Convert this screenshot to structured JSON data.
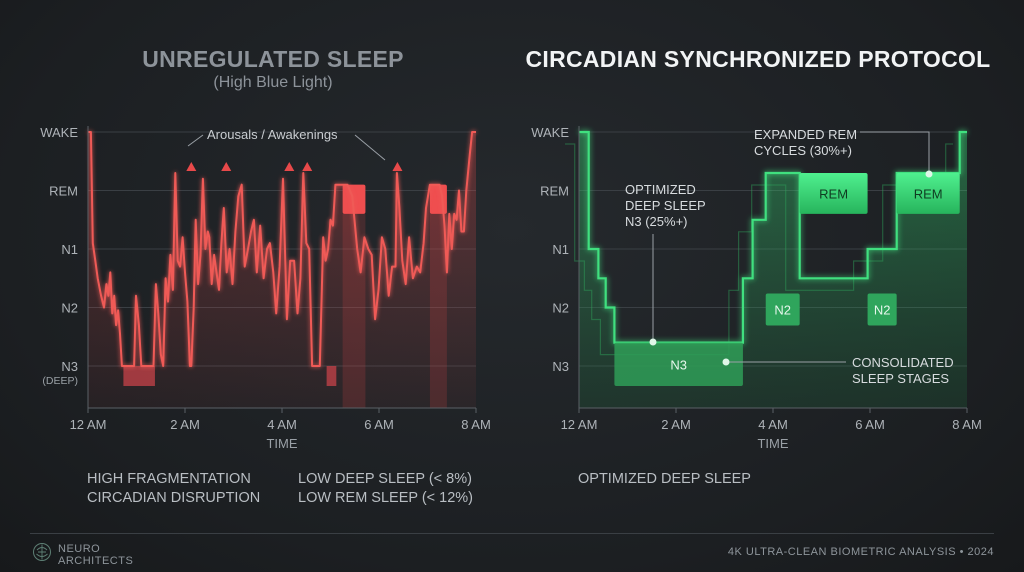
{
  "left_panel": {
    "title": "UNREGULATED SLEEP",
    "subtitle": "(High Blue Light)",
    "annotation": "Arousals / Awakenings",
    "stats": [
      "HIGH FRAGMENTATION",
      "CIRCADIAN DISRUPTION",
      "LOW DEEP SLEEP (< 8%)",
      "LOW REM SLEEP (< 12%)"
    ]
  },
  "right_panel": {
    "title": "CIRCADIAN SYNCHRONIZED PROTOCOL",
    "annotations": {
      "rem_line1": "EXPANDED REM",
      "rem_line2": "CYCLES (30%+)",
      "deep_line1": "OPTIMIZED",
      "deep_line2": "DEEP SLEEP",
      "deep_line3": "N3 (25%+)",
      "consol_line1": "CONSOLIDATED",
      "consol_line2": "SLEEP STAGES"
    },
    "stats": [
      "OPTIMIZED DEEP SLEEP"
    ]
  },
  "footer": {
    "brand_line1": "NEURO",
    "brand_line2": "ARCHITECTS",
    "right_text": "4K ULTRA-CLEAN BIOMETRIC ANALYSIS • 2024"
  },
  "colors": {
    "unregulated": "#e8494a",
    "synchronized": "#39e07a",
    "arousal_marker": "#e8494a"
  },
  "chart_data": [
    {
      "type": "line",
      "title": "UNREGULATED SLEEP",
      "subtitle": "(High Blue Light)",
      "xlabel": "TIME",
      "ylabel": "",
      "x_ticks": [
        "12 AM",
        "2 AM",
        "4 AM",
        "6 AM",
        "8 AM"
      ],
      "y_ticks": [
        "WAKE",
        "REM",
        "N1",
        "N2",
        "N3"
      ],
      "y_tick_sub": "(DEEP)",
      "xlim": [
        0,
        8
      ],
      "y_levels": {
        "WAKE": 4,
        "REM": 3,
        "N1": 2,
        "N2": 1,
        "N3": 0
      },
      "grid": true,
      "series": [
        {
          "x": [
            0,
            0.06,
            0.1,
            0.15,
            0.2,
            0.27,
            0.33,
            0.38,
            0.42,
            0.46,
            0.5,
            0.54,
            0.58,
            0.62,
            0.66,
            0.7,
            0.74,
            0.78,
            0.8,
            0.83,
            0.86,
            0.89,
            0.92,
            0.95,
            0.99,
            1.05,
            1.1,
            1.15,
            1.25,
            1.3,
            1.35,
            1.4,
            1.45,
            1.5,
            1.55,
            1.6,
            1.65,
            1.7,
            1.75,
            1.8,
            1.85,
            1.9,
            1.95,
            2.0,
            2.05,
            2.1,
            2.13,
            2.18,
            2.22,
            2.27,
            2.32,
            2.37,
            2.42,
            2.47,
            2.5,
            2.55,
            2.6,
            2.65,
            2.7,
            2.75,
            2.8,
            2.86,
            2.92,
            2.98,
            3.04,
            3.1,
            3.17,
            3.23,
            3.3,
            3.36,
            3.42,
            3.48,
            3.55,
            3.62,
            3.69,
            3.75,
            3.82,
            3.88,
            3.95,
            4.02,
            4.1,
            4.17,
            4.25,
            4.32,
            4.38,
            4.44,
            4.5,
            4.56,
            4.62,
            4.7,
            4.78,
            4.85,
            4.9,
            4.95,
            5.0,
            5.05,
            5.1,
            5.13,
            5.2,
            5.3,
            5.35,
            5.45,
            5.55,
            5.62,
            5.7,
            5.78,
            5.85,
            5.92,
            5.99,
            6.06,
            6.13,
            6.2,
            6.27,
            6.34,
            6.37,
            6.42,
            6.48,
            6.55,
            6.62,
            6.7,
            6.78,
            6.85,
            6.92,
            6.97,
            7.05,
            7.15,
            7.25,
            7.3,
            7.35,
            7.4,
            7.45,
            7.5,
            7.55,
            7.6,
            7.65,
            7.7,
            7.75,
            7.8,
            7.87,
            7.92,
            7.96,
            8.0
          ],
          "y": [
            4,
            4,
            2.1,
            1.8,
            1.5,
            1.2,
            1.0,
            1.4,
            1.2,
            1.6,
            0.9,
            1.2,
            0.7,
            0.95,
            0.55,
            0,
            0,
            0,
            0,
            0,
            0,
            0,
            0,
            0,
            1.2,
            0.7,
            0,
            0,
            0,
            0,
            0,
            1.4,
            0.9,
            0.2,
            0,
            1.5,
            1.1,
            1.9,
            1.3,
            3.3,
            1.8,
            1.7,
            2.2,
            1.6,
            1.1,
            0,
            0,
            1.0,
            2.5,
            1.4,
            1.9,
            3.2,
            2.0,
            2.3,
            2.2,
            1.4,
            1.9,
            1.6,
            1.3,
            2.1,
            2.7,
            1.6,
            2.0,
            1.4,
            2.3,
            2.9,
            3.1,
            1.7,
            2.0,
            2.3,
            2.5,
            1.6,
            2.4,
            1.5,
            2.0,
            2.1,
            1.6,
            0.9,
            1.7,
            3.2,
            0.8,
            1.8,
            1.8,
            0.9,
            1.5,
            3.3,
            2.1,
            2.0,
            0,
            0,
            0,
            2.2,
            1.8,
            2.0,
            2.5,
            2.4,
            3.1,
            3.1,
            3.1,
            3.1,
            3.1,
            2.9,
            2.0,
            1.6,
            2.2,
            2.0,
            1.9,
            0.8,
            1.3,
            2.2,
            2.0,
            1.2,
            1.7,
            1.7,
            3.3,
            2.7,
            1.8,
            1.4,
            2.2,
            1.5,
            1.7,
            1.6,
            2.1,
            2.7,
            3.1,
            3.1,
            3.1,
            2.9,
            2.4,
            1.6,
            2.6,
            2.0,
            2.6,
            2.5,
            3.0,
            2.3,
            2.3,
            3.0,
            3.6,
            4,
            4,
            4
          ]
        }
      ],
      "rem_blocks": [
        [
          5.25,
          5.72
        ],
        [
          7.05,
          7.4
        ]
      ],
      "n3_blocks": [
        [
          0.73,
          1.38
        ],
        [
          4.92,
          5.12
        ]
      ],
      "arousal_markers_x": [
        2.13,
        2.85,
        4.15,
        4.52,
        6.38
      ],
      "annotations": [
        "Arousals / Awakenings"
      ]
    },
    {
      "type": "area",
      "title": "CIRCADIAN SYNCHRONIZED PROTOCOL",
      "xlabel": "TIME",
      "ylabel": "",
      "x_ticks": [
        "12 AM",
        "2 AM",
        "4 AM",
        "6 AM",
        "8 AM"
      ],
      "y_ticks": [
        "WAKE",
        "REM",
        "N1",
        "N2",
        "N3"
      ],
      "xlim": [
        0,
        8
      ],
      "y_levels": {
        "WAKE": 4,
        "REM": 3,
        "N1": 2,
        "N2": 1,
        "N3": 0
      },
      "grid": true,
      "series": [
        {
          "x": [
            0,
            0.2,
            0.2,
            0.4,
            0.4,
            0.55,
            0.55,
            0.73,
            0.73,
            3.38,
            3.38,
            3.58,
            3.58,
            3.85,
            3.85,
            4.55,
            4.55,
            5.95,
            5.95,
            6.55,
            6.55,
            7.85,
            7.85,
            8.0
          ],
          "y": [
            4,
            4,
            2,
            2,
            1.5,
            1.5,
            1,
            1,
            0.4,
            0.4,
            1.5,
            1.5,
            2.5,
            2.5,
            3.3,
            3.3,
            1.5,
            1.5,
            2,
            2,
            3.3,
            3.3,
            4.0,
            4.0
          ]
        }
      ],
      "stage_blocks": [
        {
          "label": "N3",
          "x": [
            0.73,
            3.38
          ],
          "y": 0.4
        },
        {
          "label": "N2",
          "x": [
            3.85,
            4.55
          ],
          "y": 1.0
        },
        {
          "label": "REM",
          "x": [
            4.55,
            5.95
          ],
          "y": 3.3
        },
        {
          "label": "N2",
          "x": [
            5.95,
            6.55
          ],
          "y": 1.0
        },
        {
          "label": "REM",
          "x": [
            6.55,
            7.85
          ],
          "y": 3.3
        }
      ],
      "annotations": [
        "EXPANDED REM CYCLES (30%+)",
        "OPTIMIZED DEEP SLEEP N3 (25%+)",
        "CONSOLIDATED SLEEP STAGES"
      ]
    }
  ]
}
